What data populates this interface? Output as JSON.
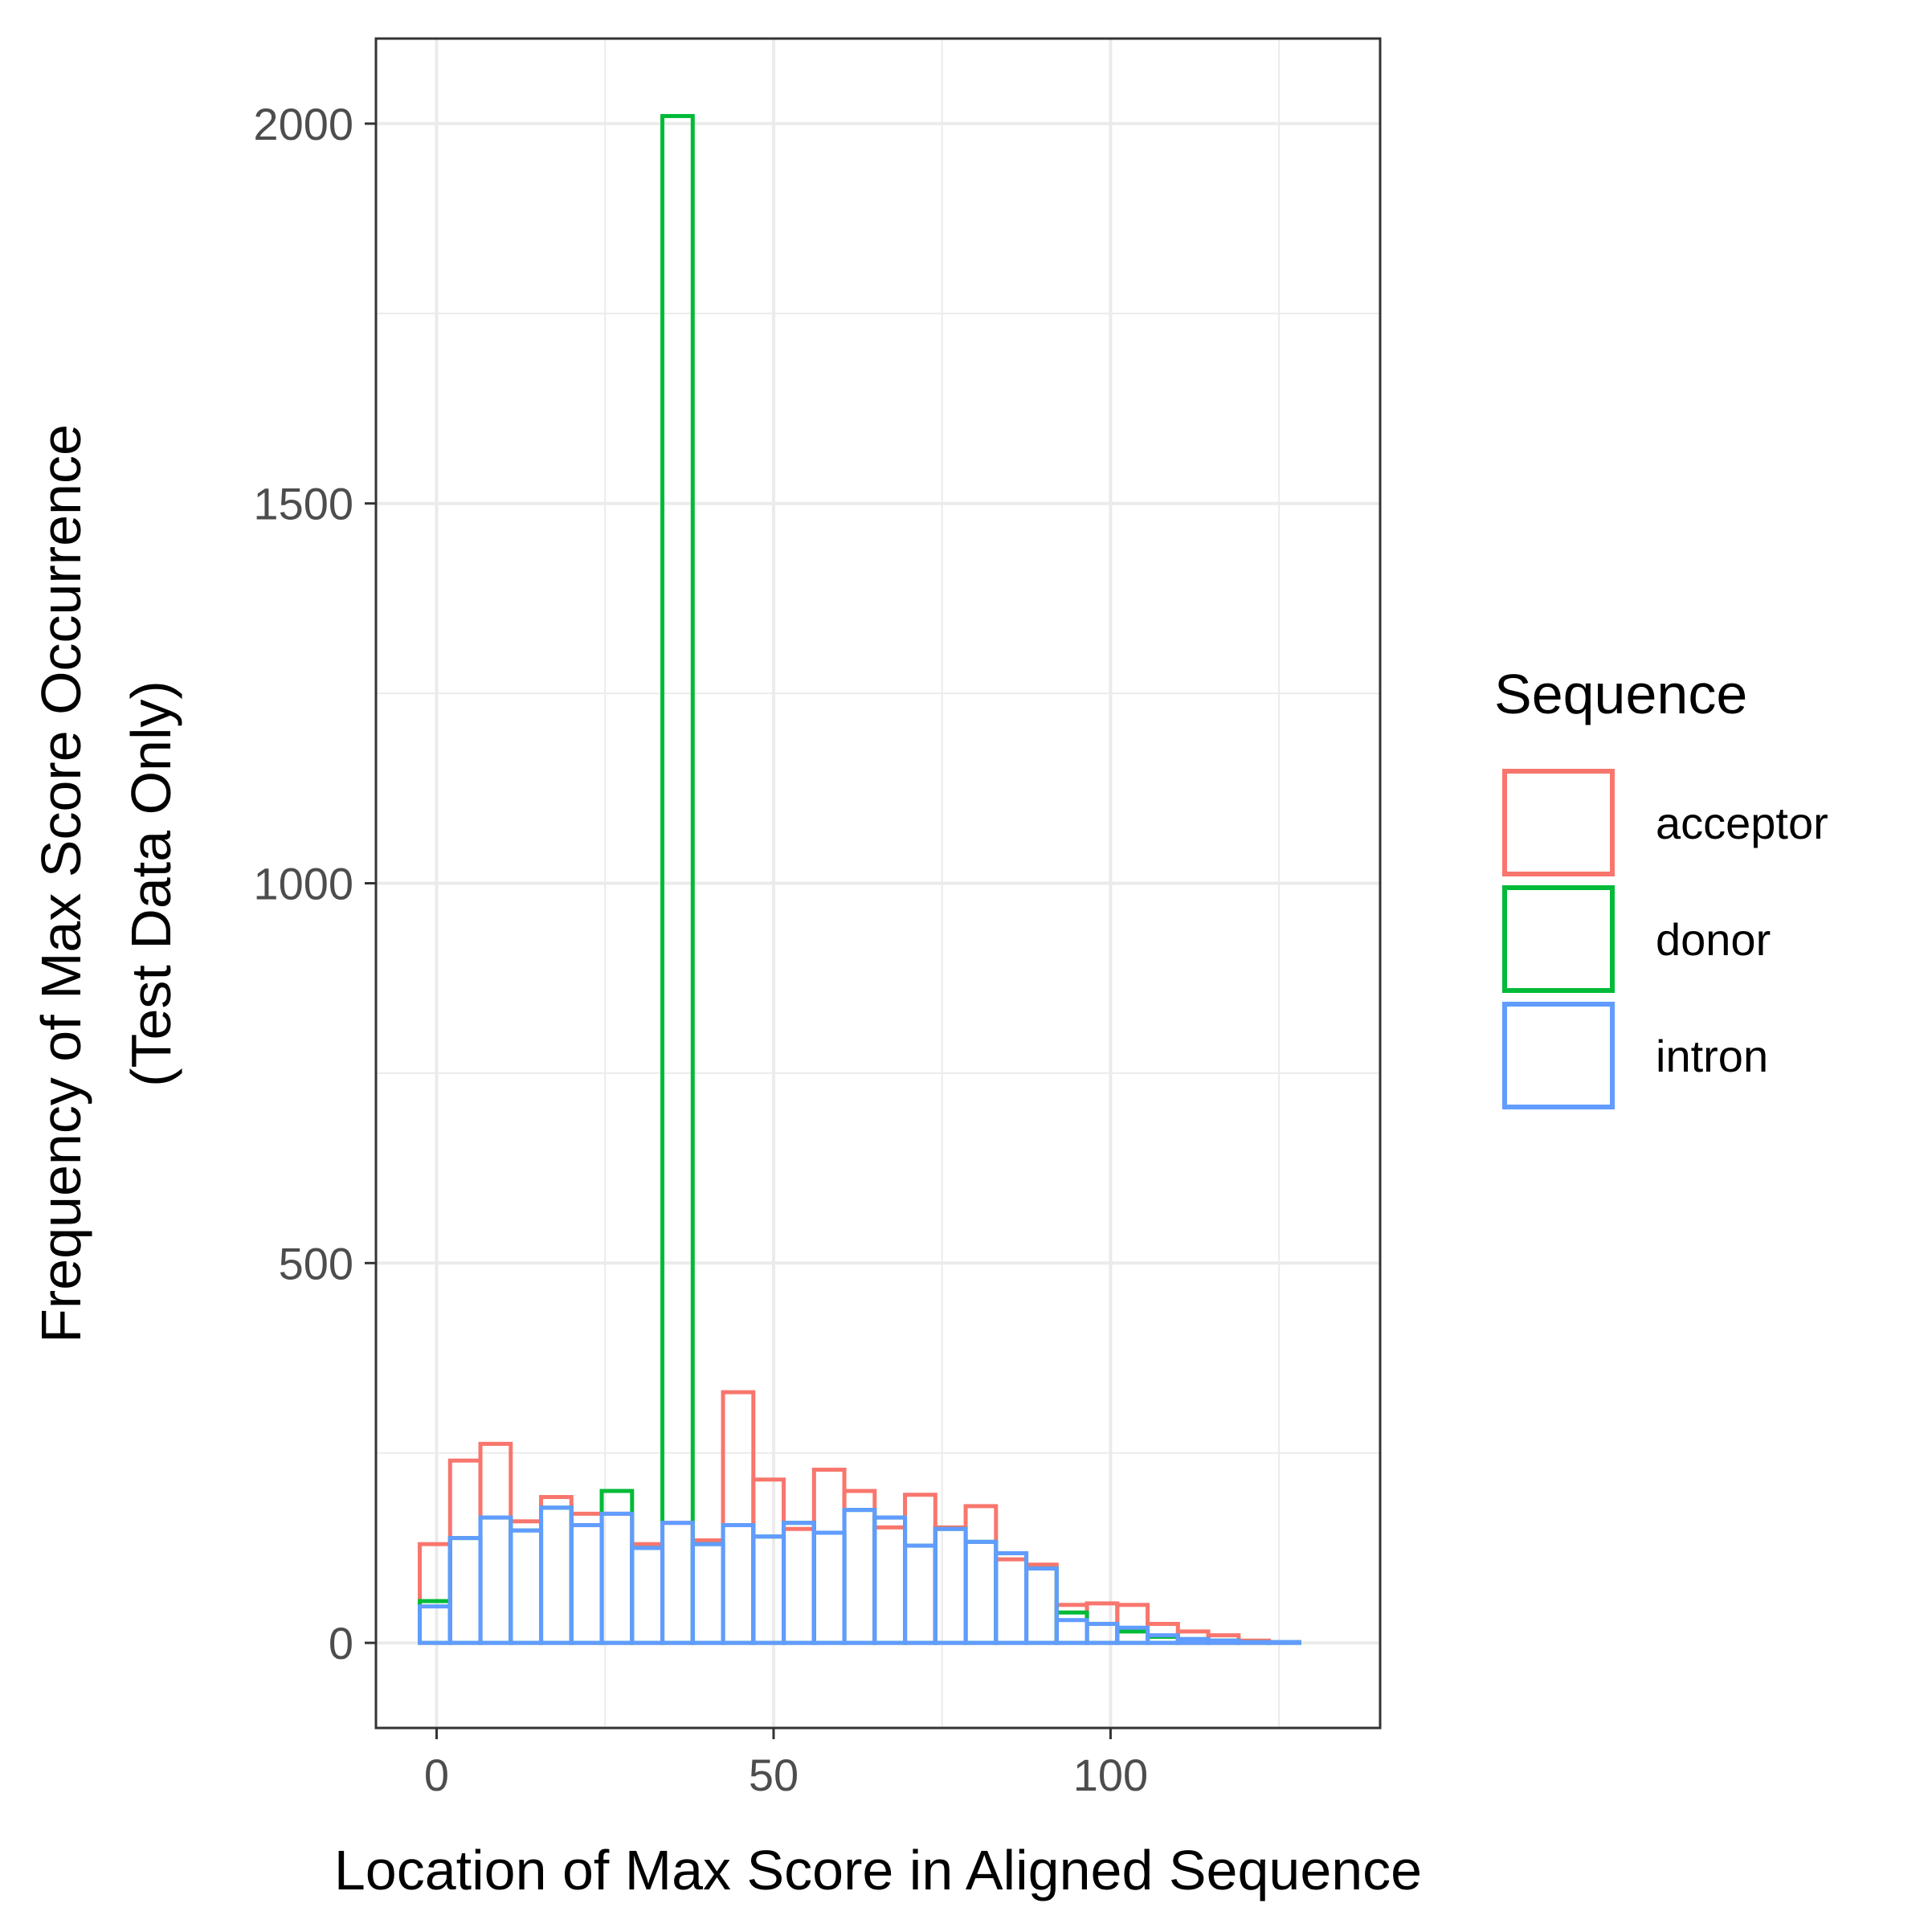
{
  "chart_data": {
    "type": "histogram",
    "xlabel": "Location of Max Score in Aligned Sequence",
    "ylabel_lines": [
      "Frequency of Max Score Occurrence",
      "(Test Data Only)"
    ],
    "xlim": [
      -9,
      140
    ],
    "ylim": [
      -112,
      2112
    ],
    "x_ticks": [
      0,
      50,
      100
    ],
    "y_ticks": [
      0,
      500,
      1000,
      1500,
      2000
    ],
    "grid": true,
    "bin_width": 4.5,
    "bin_start": -2.5,
    "legend": {
      "title": "Sequence",
      "position": "right",
      "entries": [
        {
          "label": "acceptor",
          "color": "#F8766D"
        },
        {
          "label": "donor",
          "color": "#00BA38"
        },
        {
          "label": "intron",
          "color": "#619CFF"
        }
      ]
    },
    "series": [
      {
        "name": "acceptor",
        "color": "#F8766D",
        "values": [
          130,
          240,
          262,
          160,
          192,
          170,
          170,
          130,
          158,
          135,
          330,
          215,
          150,
          228,
          200,
          152,
          195,
          152,
          180,
          110,
          103,
          50,
          52,
          50,
          25,
          15,
          10,
          3,
          1
        ]
      },
      {
        "name": "donor",
        "color": "#00BA38",
        "values": [
          55,
          138,
          165,
          148,
          178,
          155,
          200,
          125,
          2010,
          130,
          155,
          140,
          158,
          145,
          175,
          165,
          128,
          150,
          133,
          118,
          98,
          40,
          25,
          15,
          8,
          5,
          3,
          1,
          1
        ]
      },
      {
        "name": "intron",
        "color": "#619CFF",
        "values": [
          48,
          138,
          165,
          148,
          178,
          155,
          170,
          125,
          158,
          130,
          155,
          140,
          158,
          145,
          175,
          165,
          128,
          150,
          133,
          118,
          98,
          30,
          25,
          20,
          10,
          5,
          3,
          1,
          1
        ]
      }
    ]
  }
}
